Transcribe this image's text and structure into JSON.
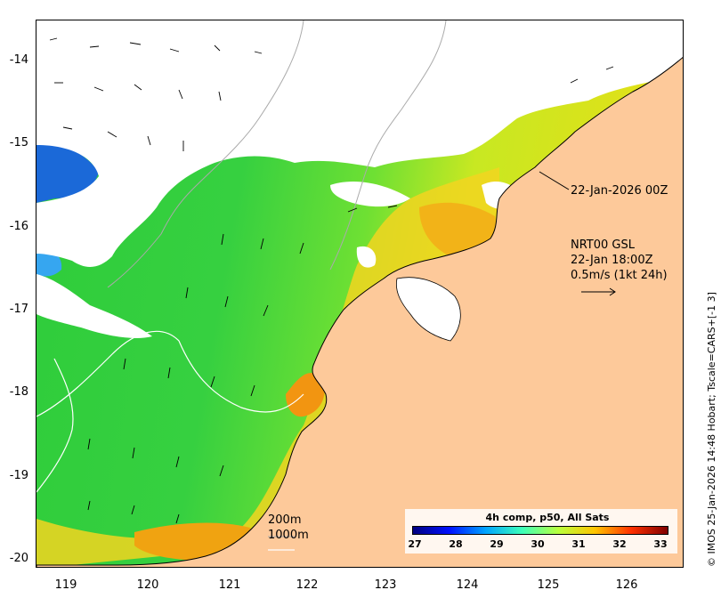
{
  "map": {
    "date_label": "22-Jan-2026 00Z",
    "current_model": "NRT00 GSL",
    "current_time": "22-Jan 18:00Z",
    "arrow_scale": "0.5m/s (1kt 24h)",
    "side_credit": "© IMOS 25-Jan-2026 14:48 Hobart; Tscale=CARS+[-1 3]",
    "isobath_labels": [
      "200m",
      "1000m"
    ],
    "lat_ticks": [
      "-14",
      "-15",
      "-16",
      "-17",
      "-18",
      "-19",
      "-20"
    ],
    "lon_ticks": [
      "119",
      "120",
      "121",
      "122",
      "123",
      "124",
      "125",
      "126"
    ],
    "colors": {
      "land": "#fdc99a",
      "cloud": "#ffffff",
      "coast": "#000000",
      "isobath_200": "#aaaaaa",
      "isobath_1000": "#ffffff"
    }
  },
  "colorbar": {
    "title": "4h comp, p50, All Sats",
    "ticks": [
      "27",
      "28",
      "29",
      "30",
      "31",
      "32",
      "33"
    ],
    "stops": [
      "#00007f",
      "#0010ff",
      "#00a4ff",
      "#3dffb9",
      "#b9ff3d",
      "#ffc500",
      "#ff3000",
      "#7f0000"
    ]
  }
}
